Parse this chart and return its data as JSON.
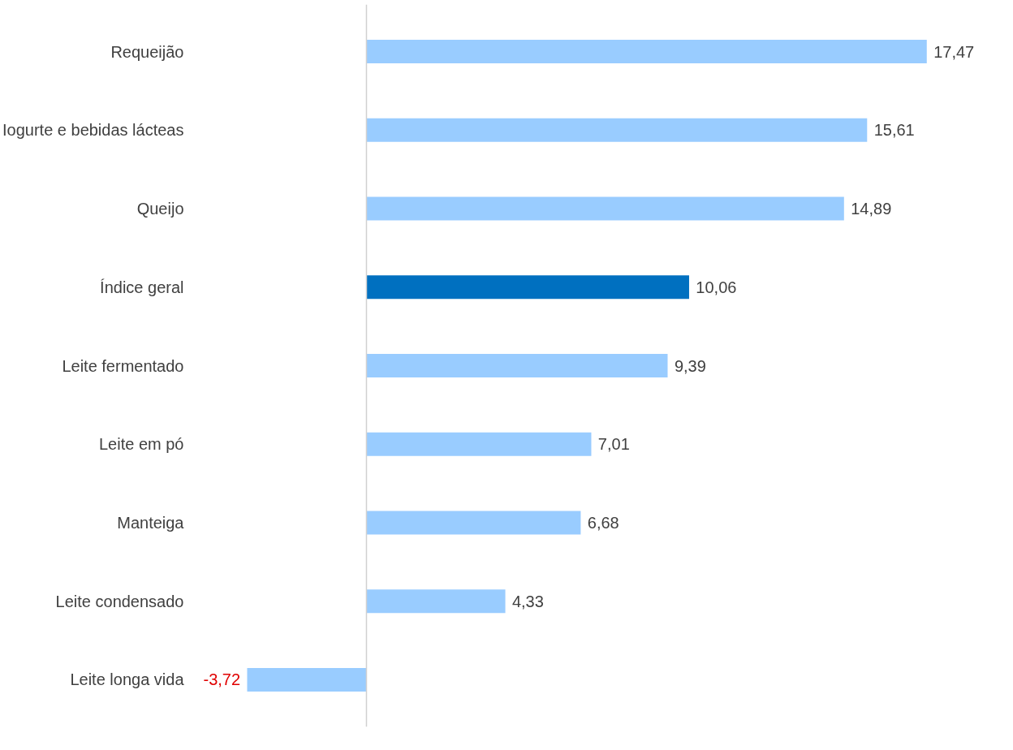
{
  "chart_data": {
    "type": "bar",
    "orientation": "horizontal",
    "categories": [
      "Requeijão",
      "Iogurte e bebidas lácteas",
      "Queijo",
      "Índice geral",
      "Leite fermentado",
      "Leite em pó",
      "Manteiga",
      "Leite condensado",
      "Leite longa vida"
    ],
    "values": [
      17.47,
      15.61,
      14.89,
      10.06,
      9.39,
      7.01,
      6.68,
      4.33,
      -3.72
    ],
    "colors": [
      "#99ccff",
      "#99ccff",
      "#99ccff",
      "#0070c0",
      "#99ccff",
      "#99ccff",
      "#99ccff",
      "#99ccff",
      "#99ccff"
    ],
    "value_labels": [
      "17,47",
      "15,61",
      "14,89",
      "10,06",
      "9,39",
      "7,01",
      "6,68",
      "4,33",
      "-3,72"
    ]
  }
}
